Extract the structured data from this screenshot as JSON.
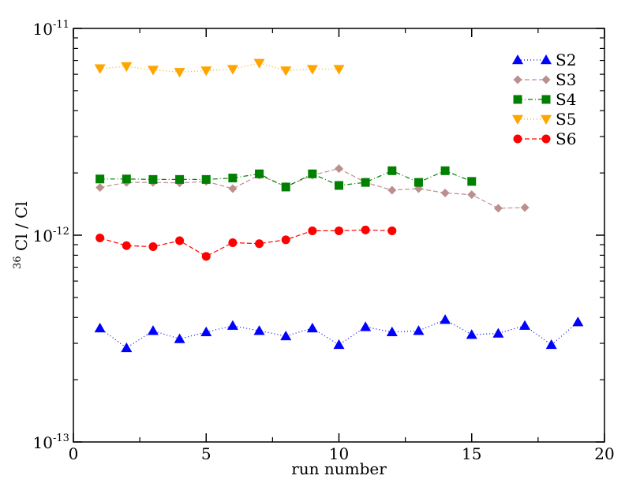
{
  "chart_data": {
    "type": "scatter",
    "xlabel": "run number",
    "ylabel_sup": "36",
    "ylabel_main": "Cl / Cl",
    "xlim": [
      0,
      20
    ],
    "ylim": [
      1e-13,
      1e-11
    ],
    "yscale": "log",
    "grid": false,
    "legend_position": "top-right",
    "x_ticks": [
      {
        "value": 0,
        "label": "0"
      },
      {
        "value": 5,
        "label": "5"
      },
      {
        "value": 10,
        "label": "10"
      },
      {
        "value": 15,
        "label": "15"
      },
      {
        "value": 20,
        "label": "20"
      }
    ],
    "y_ticks": [
      {
        "value": 1e-13,
        "base": "10",
        "exp": "-13"
      },
      {
        "value": 1e-12,
        "base": "10",
        "exp": "-12"
      },
      {
        "value": 1e-11,
        "base": "10",
        "exp": "-11"
      }
    ],
    "series": [
      {
        "name": "S2",
        "color": "#0000ff",
        "marker": "triangle-up",
        "dash": "1 3",
        "x": [
          1,
          2,
          3,
          4,
          5,
          6,
          7,
          8,
          9,
          10,
          11,
          12,
          13,
          14,
          15,
          16,
          17,
          18,
          19
        ],
        "y": [
          3.55e-13,
          2.85e-13,
          3.45e-13,
          3.15e-13,
          3.4e-13,
          3.65e-13,
          3.45e-13,
          3.25e-13,
          3.55e-13,
          2.95e-13,
          3.6e-13,
          3.4e-13,
          3.45e-13,
          3.9e-13,
          3.3e-13,
          3.35e-13,
          3.65e-13,
          2.95e-13,
          3.8e-13
        ]
      },
      {
        "name": "S3",
        "color": "#bc8f8f",
        "marker": "diamond",
        "dash": "6 3",
        "x": [
          1,
          2,
          3,
          4,
          5,
          6,
          7,
          8,
          9,
          10,
          11,
          12,
          13,
          14,
          15,
          16,
          17
        ],
        "y": [
          1.7e-12,
          1.8e-12,
          1.8e-12,
          1.79e-12,
          1.82e-12,
          1.68e-12,
          1.95e-12,
          1.72e-12,
          1.95e-12,
          2.1e-12,
          1.8e-12,
          1.65e-12,
          1.68e-12,
          1.6e-12,
          1.57e-12,
          1.35e-12,
          1.36e-12
        ]
      },
      {
        "name": "S4",
        "color": "#008000",
        "marker": "square",
        "dash": "6 3 1 3",
        "x": [
          1,
          2,
          3,
          4,
          5,
          6,
          7,
          8,
          9,
          10,
          11,
          12,
          13,
          14,
          15
        ],
        "y": [
          1.87e-12,
          1.87e-12,
          1.86e-12,
          1.86e-12,
          1.86e-12,
          1.89e-12,
          1.98e-12,
          1.71e-12,
          1.98e-12,
          1.74e-12,
          1.8e-12,
          2.05e-12,
          1.8e-12,
          2.05e-12,
          1.82e-12
        ]
      },
      {
        "name": "S5",
        "color": "#ffa500",
        "marker": "triangle-down",
        "dash": "1 3",
        "x": [
          1,
          2,
          3,
          4,
          5,
          6,
          7,
          8,
          9,
          10
        ],
        "y": [
          6.4e-12,
          6.55e-12,
          6.3e-12,
          6.15e-12,
          6.25e-12,
          6.35e-12,
          6.8e-12,
          6.25e-12,
          6.35e-12,
          6.35e-12
        ]
      },
      {
        "name": "S6",
        "color": "#ff0000",
        "marker": "circle",
        "dash": "6 3",
        "x": [
          1,
          2,
          3,
          4,
          5,
          6,
          7,
          8,
          9,
          10,
          11,
          12
        ],
        "y": [
          9.7e-13,
          8.9e-13,
          8.8e-13,
          9.4e-13,
          7.9e-13,
          9.2e-13,
          9.1e-13,
          9.5e-13,
          1.05e-12,
          1.05e-12,
          1.06e-12,
          1.05e-12
        ]
      }
    ]
  }
}
